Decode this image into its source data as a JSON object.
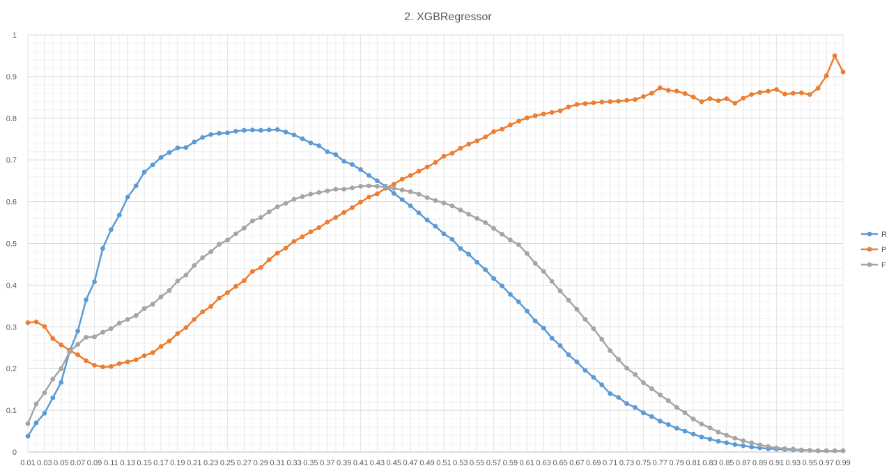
{
  "chart_data": {
    "type": "line",
    "title": "2. XGBRegressor",
    "xlabel": "",
    "ylabel": "",
    "ylim": [
      0,
      1
    ],
    "y_ticks": [
      "0",
      "0.1",
      "0.2",
      "0.3",
      "0.4",
      "0.5",
      "0.6",
      "0.7",
      "0.8",
      "0.9",
      "1"
    ],
    "x": [
      "0.01",
      "0.02",
      "0.03",
      "0.04",
      "0.05",
      "0.06",
      "0.07",
      "0.08",
      "0.09",
      "0.1",
      "0.11",
      "0.12",
      "0.13",
      "0.14",
      "0.15",
      "0.16",
      "0.17",
      "0.18",
      "0.19",
      "0.2",
      "0.21",
      "0.22",
      "0.23",
      "0.24",
      "0.25",
      "0.26",
      "0.27",
      "0.28",
      "0.29",
      "0.3",
      "0.31",
      "0.32",
      "0.33",
      "0.34",
      "0.35",
      "0.36",
      "0.37",
      "0.38",
      "0.39",
      "0.4",
      "0.41",
      "0.42",
      "0.43",
      "0.44",
      "0.45",
      "0.46",
      "0.47",
      "0.48",
      "0.49",
      "0.5",
      "0.51",
      "0.52",
      "0.53",
      "0.54",
      "0.55",
      "0.56",
      "0.57",
      "0.58",
      "0.59",
      "0.6",
      "0.61",
      "0.62",
      "0.63",
      "0.64",
      "0.65",
      "0.66",
      "0.67",
      "0.68",
      "0.69",
      "0.7",
      "0.71",
      "0.72",
      "0.73",
      "0.74",
      "0.75",
      "0.76",
      "0.77",
      "0.78",
      "0.79",
      "0.8",
      "0.81",
      "0.82",
      "0.83",
      "0.84",
      "0.85",
      "0.86",
      "0.87",
      "0.88",
      "0.89",
      "0.9",
      "0.91",
      "0.92",
      "0.93",
      "0.94",
      "0.95",
      "0.96",
      "0.97",
      "0.98",
      "0.99"
    ],
    "x_tick_labels": [
      "0.01",
      "0.03",
      "0.05",
      "0.07",
      "0.09",
      "0.11",
      "0.13",
      "0.15",
      "0.17",
      "0.19",
      "0.21",
      "0.23",
      "0.25",
      "0.27",
      "0.29",
      "0.31",
      "0.33",
      "0.35",
      "0.37",
      "0.39",
      "0.41",
      "0.43",
      "0.45",
      "0.47",
      "0.49",
      "0.51",
      "0.53",
      "0.55",
      "0.57",
      "0.59",
      "0.61",
      "0.63",
      "0.65",
      "0.67",
      "0.69",
      "0.71",
      "0.73",
      "0.75",
      "0.77",
      "0.79",
      "0.81",
      "0.83",
      "0.85",
      "0.87",
      "0.89",
      "0.91",
      "0.93",
      "0.95",
      "0.97",
      "0.99"
    ],
    "grid": true,
    "legend_position": "right",
    "series": [
      {
        "name": "R",
        "color": "#5b9bd5",
        "values": [
          0.038,
          0.07,
          0.093,
          0.13,
          0.167,
          0.24,
          0.29,
          0.365,
          0.408,
          0.488,
          0.533,
          0.568,
          0.611,
          0.638,
          0.671,
          0.688,
          0.706,
          0.718,
          0.729,
          0.73,
          0.743,
          0.754,
          0.761,
          0.764,
          0.765,
          0.769,
          0.771,
          0.772,
          0.771,
          0.772,
          0.773,
          0.767,
          0.76,
          0.751,
          0.741,
          0.734,
          0.72,
          0.713,
          0.697,
          0.689,
          0.677,
          0.663,
          0.65,
          0.637,
          0.62,
          0.605,
          0.59,
          0.573,
          0.556,
          0.541,
          0.523,
          0.51,
          0.488,
          0.474,
          0.455,
          0.437,
          0.416,
          0.398,
          0.378,
          0.36,
          0.338,
          0.314,
          0.297,
          0.273,
          0.255,
          0.233,
          0.216,
          0.196,
          0.179,
          0.161,
          0.14,
          0.131,
          0.116,
          0.107,
          0.094,
          0.085,
          0.074,
          0.066,
          0.057,
          0.05,
          0.043,
          0.036,
          0.031,
          0.026,
          0.022,
          0.018,
          0.015,
          0.012,
          0.01,
          0.008,
          0.007,
          0.006,
          0.005,
          0.004,
          0.004,
          0.003,
          0.003,
          0.003,
          0.003
        ]
      },
      {
        "name": "P",
        "color": "#ed7d31",
        "values": [
          0.31,
          0.312,
          0.301,
          0.272,
          0.257,
          0.244,
          0.233,
          0.219,
          0.208,
          0.204,
          0.205,
          0.212,
          0.216,
          0.221,
          0.231,
          0.238,
          0.253,
          0.266,
          0.284,
          0.298,
          0.318,
          0.336,
          0.349,
          0.369,
          0.382,
          0.397,
          0.411,
          0.433,
          0.442,
          0.461,
          0.477,
          0.489,
          0.505,
          0.516,
          0.528,
          0.538,
          0.551,
          0.562,
          0.574,
          0.586,
          0.599,
          0.611,
          0.619,
          0.632,
          0.642,
          0.654,
          0.663,
          0.673,
          0.683,
          0.694,
          0.709,
          0.716,
          0.728,
          0.738,
          0.746,
          0.755,
          0.768,
          0.774,
          0.784,
          0.793,
          0.801,
          0.806,
          0.81,
          0.814,
          0.818,
          0.827,
          0.833,
          0.835,
          0.837,
          0.839,
          0.84,
          0.841,
          0.843,
          0.845,
          0.852,
          0.86,
          0.873,
          0.867,
          0.865,
          0.859,
          0.851,
          0.84,
          0.847,
          0.842,
          0.847,
          0.836,
          0.848,
          0.857,
          0.862,
          0.865,
          0.869,
          0.858,
          0.86,
          0.861,
          0.857,
          0.872,
          0.902,
          0.95,
          0.911
        ]
      },
      {
        "name": "F",
        "color": "#a5a5a5",
        "values": [
          0.068,
          0.115,
          0.142,
          0.175,
          0.2,
          0.24,
          0.258,
          0.275,
          0.276,
          0.287,
          0.296,
          0.309,
          0.318,
          0.327,
          0.344,
          0.354,
          0.372,
          0.387,
          0.41,
          0.424,
          0.447,
          0.466,
          0.48,
          0.498,
          0.508,
          0.523,
          0.537,
          0.554,
          0.562,
          0.576,
          0.588,
          0.596,
          0.606,
          0.612,
          0.618,
          0.622,
          0.626,
          0.63,
          0.63,
          0.633,
          0.637,
          0.638,
          0.637,
          0.635,
          0.632,
          0.628,
          0.624,
          0.618,
          0.61,
          0.603,
          0.597,
          0.59,
          0.58,
          0.57,
          0.56,
          0.55,
          0.536,
          0.522,
          0.508,
          0.497,
          0.476,
          0.452,
          0.433,
          0.409,
          0.386,
          0.364,
          0.342,
          0.318,
          0.296,
          0.27,
          0.243,
          0.222,
          0.201,
          0.186,
          0.166,
          0.152,
          0.137,
          0.123,
          0.107,
          0.094,
          0.079,
          0.067,
          0.058,
          0.048,
          0.04,
          0.033,
          0.027,
          0.022,
          0.017,
          0.013,
          0.01,
          0.008,
          0.007,
          0.005,
          0.004,
          0.003,
          0.003,
          0.003,
          0.003
        ]
      }
    ]
  }
}
